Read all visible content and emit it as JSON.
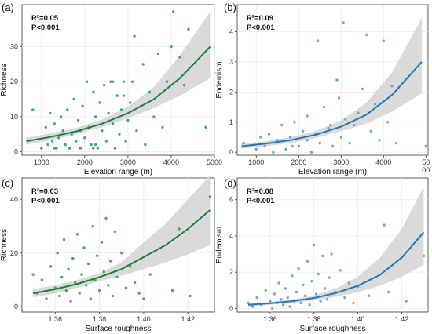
{
  "chart_data": [
    {
      "type": "scatter",
      "panel_label": "(a)",
      "xlabel": "Elevation range (m)",
      "ylabel": "Richness",
      "annotations": [
        "R²=0.05",
        "P<0.001"
      ],
      "x_ticks": [
        "1000",
        "2000",
        "3000",
        "4000",
        "5000"
      ],
      "y_ticks": [
        "0",
        "10",
        "20",
        "30"
      ],
      "xlim": [
        550,
        5000
      ],
      "ylim": [
        -1,
        42
      ],
      "point_color": "#1b9e77",
      "line_color": "#1a7f3c",
      "band_color": "#d3d3d3",
      "fit": {
        "x": [
          650,
          1200,
          1800,
          2400,
          3000,
          3600,
          4200,
          4900
        ],
        "y": [
          3,
          4.2,
          5.8,
          8,
          11,
          15,
          21,
          30
        ]
      },
      "band": {
        "x": [
          650,
          1200,
          1800,
          2400,
          3000,
          3600,
          4200,
          4900
        ],
        "low": [
          2,
          3.3,
          5,
          7,
          9.6,
          12.5,
          16,
          21
        ],
        "high": [
          4,
          5.2,
          6.8,
          9.2,
          12.8,
          18.5,
          27.5,
          40
        ]
      },
      "points": [
        [
          800,
          12
        ],
        [
          1000,
          1
        ],
        [
          1100,
          7
        ],
        [
          1150,
          2
        ],
        [
          1200,
          11
        ],
        [
          1250,
          3
        ],
        [
          1300,
          8
        ],
        [
          1350,
          1
        ],
        [
          1400,
          4
        ],
        [
          1450,
          10
        ],
        [
          1500,
          6
        ],
        [
          1550,
          2
        ],
        [
          1600,
          12
        ],
        [
          1650,
          1
        ],
        [
          1700,
          5
        ],
        [
          1750,
          15
        ],
        [
          1800,
          3
        ],
        [
          1850,
          9
        ],
        [
          1900,
          1
        ],
        [
          1950,
          13
        ],
        [
          2000,
          4
        ],
        [
          2050,
          20
        ],
        [
          2100,
          7
        ],
        [
          2150,
          2
        ],
        [
          2200,
          17
        ],
        [
          2250,
          10
        ],
        [
          2300,
          1
        ],
        [
          2350,
          14
        ],
        [
          2400,
          6
        ],
        [
          2450,
          19
        ],
        [
          2500,
          3
        ],
        [
          2550,
          11
        ],
        [
          2600,
          20
        ],
        [
          2650,
          8
        ],
        [
          2700,
          1
        ],
        [
          2750,
          16
        ],
        [
          2800,
          5
        ],
        [
          2850,
          12
        ],
        [
          2900,
          20
        ],
        [
          2950,
          3
        ],
        [
          3000,
          9
        ],
        [
          3050,
          14
        ],
        [
          3100,
          20
        ],
        [
          3150,
          33
        ],
        [
          3200,
          6
        ],
        [
          3300,
          13
        ],
        [
          3350,
          25
        ],
        [
          3400,
          2
        ],
        [
          3500,
          17
        ],
        [
          3600,
          10
        ],
        [
          3700,
          28
        ],
        [
          3800,
          7
        ],
        [
          3900,
          20
        ],
        [
          4000,
          30
        ],
        [
          4050,
          40
        ],
        [
          4200,
          27
        ],
        [
          4300,
          19
        ],
        [
          4400,
          35
        ],
        [
          4800,
          7
        ],
        [
          1300,
          1
        ],
        [
          1900,
          6
        ],
        [
          2200,
          1
        ],
        [
          2650,
          20
        ],
        [
          2250,
          2
        ],
        [
          2900,
          16
        ]
      ]
    },
    {
      "type": "scatter",
      "panel_label": "(b)",
      "xlabel": "Elevation range (m)",
      "ylabel": "Endemism",
      "annotations": [
        "R²=0.09",
        "P<0.001"
      ],
      "x_ticks": [
        "1000",
        "2000",
        "3000",
        "4000",
        "50\n00"
      ],
      "y_ticks": [
        "0",
        "1",
        "2",
        "3",
        "4"
      ],
      "xlim": [
        550,
        5050
      ],
      "ylim": [
        -0.1,
        4.9
      ],
      "point_color": "#5b9bd5",
      "line_color": "#1f78b4",
      "band_color": "#d3d3d3",
      "fit": {
        "x": [
          650,
          1200,
          1800,
          2400,
          3000,
          3600,
          4200,
          4900
        ],
        "y": [
          0.2,
          0.28,
          0.4,
          0.58,
          0.85,
          1.25,
          1.9,
          3.0
        ]
      },
      "band": {
        "x": [
          650,
          1200,
          1800,
          2400,
          3000,
          3600,
          4200,
          4900
        ],
        "low": [
          0.12,
          0.2,
          0.3,
          0.47,
          0.7,
          0.95,
          1.35,
          1.95
        ],
        "high": [
          0.28,
          0.36,
          0.5,
          0.7,
          1.05,
          1.65,
          2.65,
          4.45
        ]
      },
      "points": [
        [
          700,
          0.3
        ],
        [
          1000,
          0.1
        ],
        [
          1100,
          0.5
        ],
        [
          1200,
          0.2
        ],
        [
          1300,
          0.6
        ],
        [
          1400,
          0.0
        ],
        [
          1500,
          0.4
        ],
        [
          1600,
          0.9
        ],
        [
          1700,
          0.1
        ],
        [
          1800,
          0.5
        ],
        [
          1900,
          1.0
        ],
        [
          2000,
          0.2
        ],
        [
          2100,
          0.7
        ],
        [
          2200,
          1.2
        ],
        [
          2300,
          0.0
        ],
        [
          2400,
          0.6
        ],
        [
          2500,
          0.3
        ],
        [
          2600,
          1.5
        ],
        [
          2700,
          0.8
        ],
        [
          2800,
          0.2
        ],
        [
          2900,
          2.4
        ],
        [
          2950,
          1.8
        ],
        [
          3000,
          0.5
        ],
        [
          3050,
          4.3
        ],
        [
          3100,
          1.1
        ],
        [
          3200,
          0.3
        ],
        [
          3300,
          0.9
        ],
        [
          3400,
          1.3
        ],
        [
          3500,
          2.1
        ],
        [
          3600,
          3.9
        ],
        [
          3700,
          0.7
        ],
        [
          3800,
          1.6
        ],
        [
          3900,
          0.4
        ],
        [
          4000,
          3.7
        ],
        [
          4100,
          1.0
        ],
        [
          4200,
          2.2
        ],
        [
          4300,
          0.3
        ],
        [
          5000,
          0.2
        ],
        [
          2450,
          3.7
        ],
        [
          2200,
          0.4
        ],
        [
          1850,
          0.2
        ],
        [
          2750,
          0.9
        ]
      ]
    },
    {
      "type": "scatter",
      "panel_label": "(c)",
      "xlabel": "Surface roughness",
      "ylabel": "Richness",
      "annotations": [
        "R²=0.03",
        "P<0.001"
      ],
      "x_ticks": [
        "1.36",
        "1.38",
        "1.40",
        "1.42"
      ],
      "y_ticks": [
        "0",
        "20",
        "40"
      ],
      "xlim": [
        1.345,
        1.432
      ],
      "ylim": [
        -2,
        48
      ],
      "point_color": "#3a9a3a",
      "line_color": "#1a7f3c",
      "band_color": "#d3d3d3",
      "fit": {
        "x": [
          1.35,
          1.36,
          1.37,
          1.38,
          1.39,
          1.4,
          1.41,
          1.42,
          1.43
        ],
        "y": [
          5,
          6.5,
          8.5,
          11,
          14,
          18.5,
          23,
          29,
          36
        ]
      },
      "band": {
        "x": [
          1.35,
          1.36,
          1.37,
          1.38,
          1.39,
          1.4,
          1.41,
          1.42,
          1.43
        ],
        "low": [
          3.5,
          5,
          7,
          9.5,
          11.5,
          14,
          16.5,
          19.5,
          23
        ]
      },
      "band_high": [
        6.5,
        8,
        10,
        12.5,
        16.5,
        24,
        31,
        40,
        49
      ],
      "points": [
        [
          1.35,
          12
        ],
        [
          1.352,
          5
        ],
        [
          1.354,
          10
        ],
        [
          1.356,
          3
        ],
        [
          1.358,
          15
        ],
        [
          1.36,
          7
        ],
        [
          1.361,
          20
        ],
        [
          1.362,
          4
        ],
        [
          1.363,
          11
        ],
        [
          1.364,
          25
        ],
        [
          1.365,
          6
        ],
        [
          1.366,
          14
        ],
        [
          1.367,
          2
        ],
        [
          1.368,
          18
        ],
        [
          1.369,
          9
        ],
        [
          1.37,
          27
        ],
        [
          1.371,
          5
        ],
        [
          1.372,
          12
        ],
        [
          1.373,
          22
        ],
        [
          1.374,
          8
        ],
        [
          1.375,
          16
        ],
        [
          1.376,
          3
        ],
        [
          1.377,
          30
        ],
        [
          1.378,
          10
        ],
        [
          1.379,
          19
        ],
        [
          1.38,
          6
        ],
        [
          1.381,
          24
        ],
        [
          1.382,
          13
        ],
        [
          1.383,
          33
        ],
        [
          1.384,
          8
        ],
        [
          1.385,
          17
        ],
        [
          1.386,
          4
        ],
        [
          1.387,
          28
        ],
        [
          1.388,
          11
        ],
        [
          1.39,
          20
        ],
        [
          1.392,
          7
        ],
        [
          1.394,
          15
        ],
        [
          1.396,
          9
        ],
        [
          1.398,
          5
        ],
        [
          1.4,
          3
        ],
        [
          1.403,
          12
        ],
        [
          1.413,
          6
        ],
        [
          1.416,
          29
        ],
        [
          1.43,
          41
        ],
        [
          1.421,
          4
        ]
      ]
    },
    {
      "type": "scatter",
      "panel_label": "(d)",
      "xlabel": "Surface roughness",
      "ylabel": "Endemism",
      "annotations": [
        "R²=0.08",
        "P<0.001"
      ],
      "x_ticks": [
        "1.36",
        "1.38",
        "1.40",
        "1.42"
      ],
      "y_ticks": [
        "0",
        "2",
        "4",
        "6"
      ],
      "xlim": [
        1.345,
        1.432
      ],
      "ylim": [
        -0.2,
        7.2
      ],
      "point_color": "#5b9bd5",
      "line_color": "#1f78b4",
      "band_color": "#d3d3d3",
      "fit": {
        "x": [
          1.35,
          1.36,
          1.37,
          1.38,
          1.39,
          1.4,
          1.41,
          1.42,
          1.43
        ],
        "y": [
          0.2,
          0.28,
          0.4,
          0.58,
          0.85,
          1.25,
          1.85,
          2.8,
          4.2
        ]
      },
      "band": {
        "x": [
          1.35,
          1.36,
          1.37,
          1.38,
          1.39,
          1.4,
          1.41,
          1.42,
          1.43
        ],
        "low": [
          0.12,
          0.2,
          0.3,
          0.45,
          0.65,
          0.9,
          1.25,
          1.75,
          2.4
        ]
      },
      "band_high": [
        0.28,
        0.36,
        0.5,
        0.72,
        1.1,
        1.75,
        2.8,
        4.4,
        6.7
      ],
      "points": [
        [
          1.35,
          0.3
        ],
        [
          1.352,
          0.1
        ],
        [
          1.354,
          0.6
        ],
        [
          1.356,
          0.2
        ],
        [
          1.358,
          1.0
        ],
        [
          1.36,
          0.4
        ],
        [
          1.361,
          0.0
        ],
        [
          1.362,
          0.8
        ],
        [
          1.363,
          0.3
        ],
        [
          1.364,
          1.4
        ],
        [
          1.365,
          0.5
        ],
        [
          1.366,
          0.2
        ],
        [
          1.367,
          1.1
        ],
        [
          1.368,
          0.6
        ],
        [
          1.369,
          0.1
        ],
        [
          1.37,
          1.8
        ],
        [
          1.371,
          0.4
        ],
        [
          1.372,
          0.9
        ],
        [
          1.373,
          2.2
        ],
        [
          1.374,
          0.3
        ],
        [
          1.375,
          1.3
        ],
        [
          1.376,
          0.7
        ],
        [
          1.377,
          2.6
        ],
        [
          1.378,
          0.2
        ],
        [
          1.379,
          1.5
        ],
        [
          1.38,
          3.5
        ],
        [
          1.381,
          0.8
        ],
        [
          1.382,
          1.9
        ],
        [
          1.383,
          0.4
        ],
        [
          1.384,
          2.9
        ],
        [
          1.385,
          1.1
        ],
        [
          1.386,
          0.5
        ],
        [
          1.387,
          1.7
        ],
        [
          1.388,
          3.0
        ],
        [
          1.39,
          0.9
        ],
        [
          1.392,
          2.1
        ],
        [
          1.394,
          0.6
        ],
        [
          1.396,
          1.4
        ],
        [
          1.398,
          0.3
        ],
        [
          1.4,
          1.2
        ],
        [
          1.405,
          0.7
        ],
        [
          1.412,
          4.6
        ],
        [
          1.414,
          0.9
        ],
        [
          1.422,
          0.4
        ],
        [
          1.43,
          2.9
        ]
      ]
    }
  ]
}
